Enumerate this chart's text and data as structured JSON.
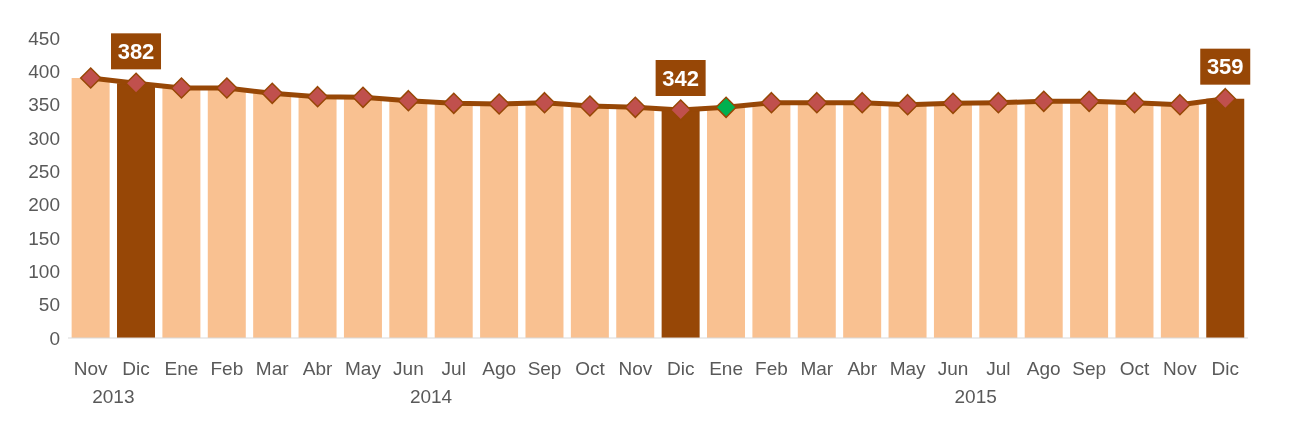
{
  "chart_data": {
    "type": "bar",
    "categories": [
      "Nov",
      "Dic",
      "Ene",
      "Feb",
      "Mar",
      "Abr",
      "May",
      "Jun",
      "Jul",
      "Ago",
      "Sep",
      "Oct",
      "Nov",
      "Dic",
      "Ene",
      "Feb",
      "Mar",
      "Abr",
      "May",
      "Jun",
      "Jul",
      "Ago",
      "Sep",
      "Oct",
      "Nov",
      "Dic"
    ],
    "series": [
      {
        "color": "#f9c191",
        "colors": [
          "#f9c191",
          "#974706",
          "#f9c191",
          "#f9c191",
          "#f9c191",
          "#f9c191",
          "#f9c191",
          "#f9c191",
          "#f9c191",
          "#f9c191",
          "#f9c191",
          "#f9c191",
          "#f9c191",
          "#974706",
          "#f9c191",
          "#f9c191",
          "#f9c191",
          "#f9c191",
          "#f9c191",
          "#f9c191",
          "#f9c191",
          "#f9c191",
          "#f9c191",
          "#f9c191",
          "#f9c191",
          "#974706"
        ],
        "values": [
          390,
          382,
          375,
          375,
          367,
          362,
          361,
          356,
          352,
          351,
          353,
          348,
          346,
          342,
          346,
          353,
          353,
          353,
          350,
          352,
          353,
          355,
          355,
          353,
          350,
          359
        ],
        "value_labels": [
          null,
          "382",
          null,
          null,
          null,
          null,
          null,
          null,
          null,
          null,
          null,
          null,
          null,
          "342",
          null,
          null,
          null,
          null,
          null,
          null,
          null,
          null,
          null,
          null,
          null,
          "359"
        ]
      },
      {
        "type": "line",
        "color": "#974706",
        "marker": "diamond",
        "colors": [
          "#c0504d",
          "#c0504d",
          "#c0504d",
          "#c0504d",
          "#c0504d",
          "#c0504d",
          "#c0504d",
          "#c0504d",
          "#c0504d",
          "#c0504d",
          "#c0504d",
          "#c0504d",
          "#c0504d",
          "#c0504d",
          "#00b050",
          "#c0504d",
          "#c0504d",
          "#c0504d",
          "#c0504d",
          "#c0504d",
          "#c0504d",
          "#c0504d",
          "#c0504d",
          "#c0504d",
          "#c0504d",
          "#c0504d"
        ],
        "values": [
          390,
          382,
          375,
          375,
          367,
          362,
          361,
          356,
          352,
          351,
          353,
          348,
          346,
          342,
          346,
          353,
          353,
          353,
          350,
          352,
          353,
          355,
          355,
          353,
          350,
          359
        ]
      }
    ],
    "annotations": [
      "2013",
      "2014",
      "2015"
    ],
    "ylim": [
      0,
      450
    ],
    "yticks": [
      0,
      50,
      100,
      150,
      200,
      250,
      300,
      350,
      400,
      450
    ]
  }
}
